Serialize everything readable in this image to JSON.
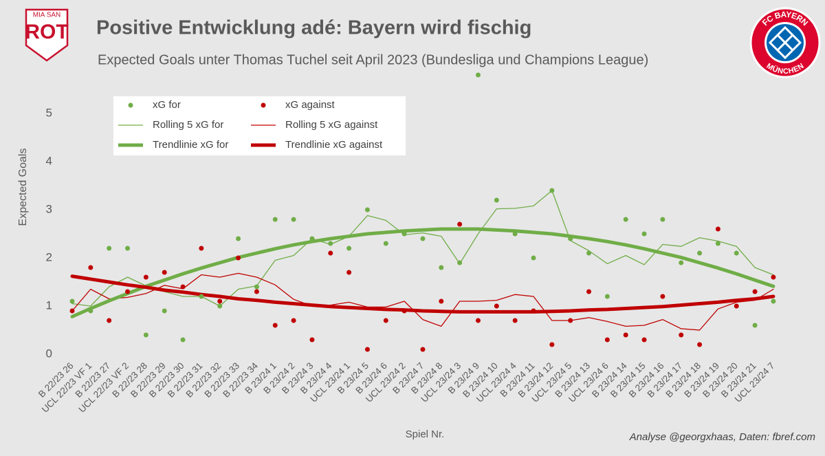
{
  "chart_data": {
    "type": "scatter",
    "title": "Positive Entwicklung adé: Bayern wird fischig",
    "subtitle": "Expected Goals unter Thomas Tuchel seit April 2023 (Bundesliga und Champions League)",
    "y_label": "Expected Goals",
    "x_label": "Spiel Nr.",
    "credit": "Analyse @georgxhaas, Daten: fbref.com",
    "logo_left": {
      "top": "MIA SAN",
      "main": "ROT"
    },
    "logo_right": {
      "top": "FC BAYERN",
      "bottom": "MÜNCHEN"
    },
    "categories": [
      "B 22/23 26",
      "UCL 22/23 VF 1",
      "B 22/23 27",
      "UCL 22/23 VF 2",
      "B 22/23 28",
      "B 22/23 29",
      "B 22/23 30",
      "B 22/23 31",
      "B 22/23 32",
      "B 22/23 33",
      "B 22/23 34",
      "B 23/24 1",
      "B 23/24 2",
      "B 23/24 3",
      "B 23/24 4",
      "UCL 23/24 1",
      "B 23/24 5",
      "B 23/24 6",
      "UCL 23/24 2",
      "B 23/24 7",
      "B 23/24 8",
      "UCL 23/24 3",
      "B 23/24 9",
      "B 23/24 10",
      "UCL 23/24 4",
      "B 23/24 11",
      "B 23/24 12",
      "UCL 23/24 5",
      "B 23/24 13",
      "UCL 23/24 6",
      "B 23/24 14",
      "B 23/24 15",
      "B 23/24 16",
      "B 23/24 17",
      "B 23/24 18",
      "B 23/24 19",
      "B 23/24 20",
      "B 23/24 21",
      "UCL 23/24 7"
    ],
    "series": [
      {
        "name": "xG for",
        "color": "#70ad47",
        "style": "points",
        "values": [
          1.1,
          0.9,
          2.2,
          2.2,
          0.4,
          0.9,
          0.3,
          1.2,
          1.0,
          2.4,
          1.4,
          2.8,
          2.8,
          2.4,
          2.3,
          2.2,
          3.0,
          2.3,
          2.5,
          2.4,
          1.8,
          1.9,
          5.8,
          3.2,
          2.5,
          2.0,
          3.4,
          2.4,
          2.1,
          1.2,
          2.8,
          2.5,
          2.8,
          1.9,
          2.1,
          2.3,
          2.1,
          0.6,
          1.1
        ]
      },
      {
        "name": "xG against",
        "color": "#c00000",
        "style": "points",
        "values": [
          0.9,
          1.8,
          0.7,
          1.3,
          1.6,
          1.7,
          1.4,
          2.2,
          1.1,
          2.0,
          1.3,
          0.6,
          0.7,
          0.3,
          2.1,
          1.7,
          0.1,
          0.7,
          0.9,
          0.1,
          1.1,
          2.7,
          0.7,
          1.0,
          0.7,
          0.9,
          0.2,
          0.7,
          1.3,
          0.3,
          0.4,
          0.3,
          1.2,
          0.4,
          0.2,
          2.6,
          1.0,
          1.3,
          1.6
        ]
      },
      {
        "name": "Rolling 5 xG for",
        "color": "#70ad47",
        "style": "line",
        "width": 1.3,
        "values": [
          1.05,
          1.0,
          1.4,
          1.6,
          1.42,
          1.3,
          1.2,
          1.2,
          1.0,
          1.35,
          1.42,
          1.95,
          2.05,
          2.4,
          2.28,
          2.45,
          2.88,
          2.78,
          2.48,
          2.52,
          2.45,
          1.88,
          2.5,
          3.02,
          3.03,
          3.08,
          3.4,
          2.36,
          2.15,
          1.88,
          2.05,
          1.86,
          2.28,
          2.24,
          2.42,
          2.35,
          2.24,
          1.8,
          1.65
        ]
      },
      {
        "name": "Rolling 5 xG against",
        "color": "#c00000",
        "style": "line",
        "width": 1.3,
        "values": [
          0.9,
          1.35,
          1.15,
          1.18,
          1.26,
          1.43,
          1.36,
          1.65,
          1.6,
          1.68,
          1.6,
          1.44,
          1.14,
          1.0,
          1.02,
          1.08,
          0.98,
          0.98,
          1.1,
          0.72,
          0.58,
          1.1,
          1.1,
          1.12,
          1.24,
          1.2,
          0.7,
          0.7,
          0.76,
          0.68,
          0.58,
          0.6,
          0.72,
          0.53,
          0.5,
          0.94,
          1.08,
          1.12,
          1.35
        ]
      },
      {
        "name": "Trendlinie xG for",
        "color": "#70ad47",
        "style": "line",
        "width": 5,
        "values": [
          0.78,
          0.95,
          1.11,
          1.26,
          1.41,
          1.54,
          1.67,
          1.79,
          1.9,
          2.01,
          2.1,
          2.19,
          2.27,
          2.34,
          2.4,
          2.45,
          2.5,
          2.53,
          2.56,
          2.58,
          2.6,
          2.6,
          2.6,
          2.58,
          2.56,
          2.53,
          2.5,
          2.45,
          2.4,
          2.34,
          2.27,
          2.19,
          2.1,
          2.01,
          1.9,
          1.79,
          1.67,
          1.54,
          1.41
        ]
      },
      {
        "name": "Trendlinie xG against",
        "color": "#c00000",
        "style": "line",
        "width": 5,
        "values": [
          1.62,
          1.56,
          1.5,
          1.44,
          1.39,
          1.33,
          1.29,
          1.24,
          1.2,
          1.15,
          1.12,
          1.08,
          1.05,
          1.02,
          0.99,
          0.97,
          0.95,
          0.93,
          0.92,
          0.9,
          0.89,
          0.88,
          0.88,
          0.88,
          0.88,
          0.88,
          0.89,
          0.9,
          0.92,
          0.93,
          0.95,
          0.97,
          0.99,
          1.02,
          1.05,
          1.08,
          1.12,
          1.15,
          1.2
        ]
      }
    ],
    "ylim": [
      0,
      5.9
    ],
    "yticks": [
      0,
      1,
      2,
      3,
      4,
      5
    ],
    "grid": false,
    "legend": "upper left"
  }
}
